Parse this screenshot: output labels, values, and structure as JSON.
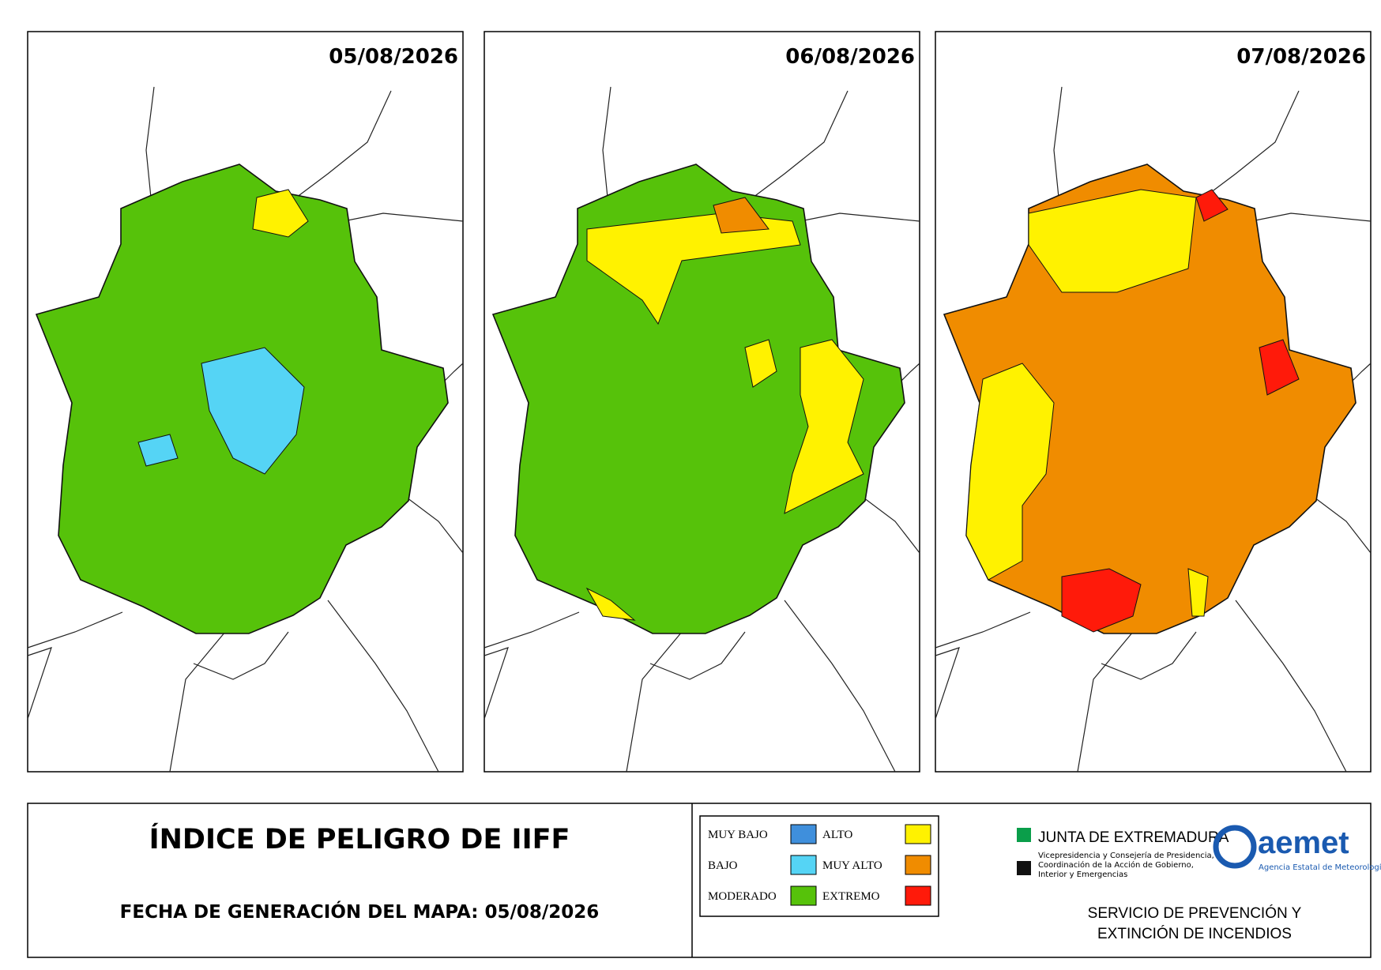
{
  "maps": [
    {
      "date": "05/08/2026"
    },
    {
      "date": "06/08/2026"
    },
    {
      "date": "07/08/2026"
    }
  ],
  "footer": {
    "title": "ÍNDICE DE PELIGRO DE IIFF",
    "generated": "FECHA DE GENERACIÓN DEL MAPA: 05/08/2026"
  },
  "legend": [
    {
      "label": "MUY BAJO",
      "color": "#3f8fdc"
    },
    {
      "label": "BAJO",
      "color": "#55d4f5"
    },
    {
      "label": "MODERADO",
      "color": "#56c20a"
    },
    {
      "label": "ALTO",
      "color": "#fff200"
    },
    {
      "label": "MUY ALTO",
      "color": "#f08c00"
    },
    {
      "label": "EXTREMO",
      "color": "#ff1a0a"
    }
  ],
  "logos": {
    "junta": "JUNTA DE EXTREMADURA",
    "junta_sub": [
      "Vicepresidencia y Consejería de Presidencia,",
      "Coordinación de la Acción de Gobierno,",
      "Interior y Emergencias"
    ],
    "aemet": "aemet",
    "aemet_sub": "Agencia Estatal de Meteorología",
    "service": [
      "SERVICIO DE PREVENCIÓN Y",
      "EXTINCIÓN DE INCENDIOS"
    ]
  }
}
